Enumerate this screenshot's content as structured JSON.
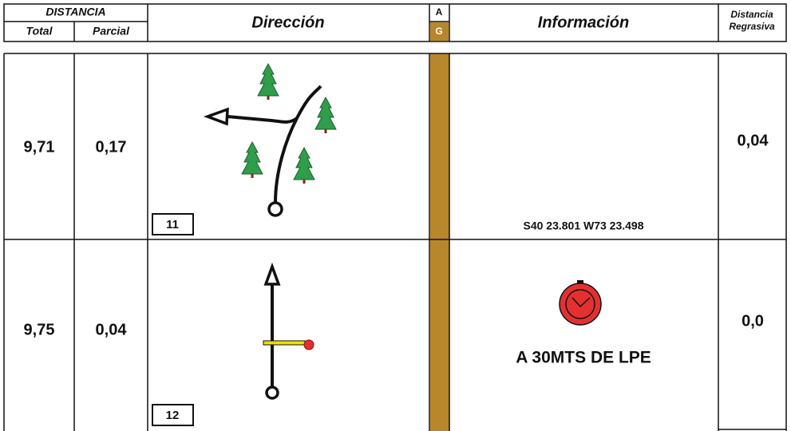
{
  "header": {
    "distancia": "DISTANCIA",
    "total": "Total",
    "parcial": "Parcial",
    "direccion": "Dirección",
    "a": "A",
    "g": "G",
    "informacion": "Información",
    "regresiva": [
      "Distancia",
      "Regrasiva"
    ]
  },
  "rows": [
    {
      "total": "9,71",
      "parcial": "0,17",
      "box": "11",
      "info": "S40 23.801 W73 23.498",
      "regresiva": "0,04"
    },
    {
      "total": "9,75",
      "parcial": "0,04",
      "box": "12",
      "info": "A 30MTS DE LPE",
      "regresiva": "0,0"
    }
  ]
}
